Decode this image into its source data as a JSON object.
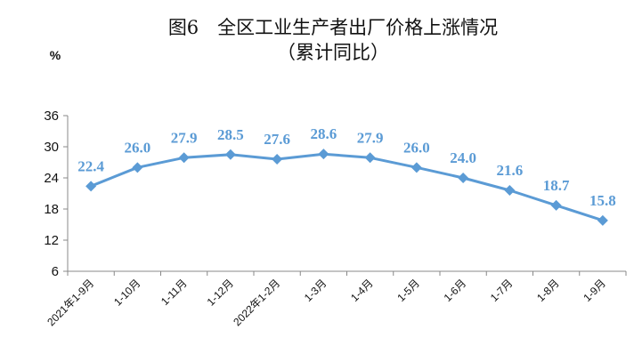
{
  "chart_data": {
    "type": "line",
    "title": "图6　全区工业生产者出厂价格上涨情况",
    "subtitle": "（累计同比）",
    "unit_label": "%",
    "categories": [
      "2021年1-9月",
      "1-10月",
      "1-11月",
      "1-12月",
      "2022年1-2月",
      "1-3月",
      "1-4月",
      "1-5月",
      "1-6月",
      "1-7月",
      "1-8月",
      "1-9月"
    ],
    "series": [
      {
        "values": [
          22.4,
          26.0,
          27.9,
          28.5,
          27.6,
          28.6,
          27.9,
          26.0,
          24.0,
          21.6,
          18.7,
          15.8
        ]
      }
    ],
    "data_labels": [
      "22.4",
      "26.0",
      "27.9",
      "28.5",
      "27.6",
      "28.6",
      "27.9",
      "26.0",
      "24.0",
      "21.6",
      "18.7",
      "15.8"
    ],
    "yticks": [
      "6",
      "12",
      "18",
      "24",
      "30",
      "36"
    ],
    "ylim": [
      6,
      36
    ],
    "grid": false,
    "line_color": "#5b9bd5",
    "marker": "diamond"
  }
}
